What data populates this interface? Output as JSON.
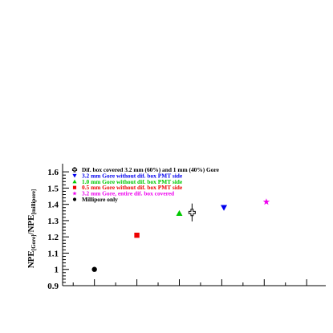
{
  "chart_data": {
    "type": "scatter",
    "title": "",
    "xlabel": "",
    "ylabel": {
      "main_a": "NPE",
      "sub_a": "[Gore]",
      "slash": "/NPE",
      "sub_b": "[millipore]"
    },
    "ylim": [
      0.9,
      1.65
    ],
    "xlim": [
      0,
      6.2
    ],
    "y_ticks": [
      0.9,
      1,
      1.1,
      1.2,
      1.3,
      1.4,
      1.5,
      1.6
    ],
    "y_tick_labels": [
      "0.9",
      "1",
      "1.1",
      "1.2",
      "1.3",
      "1.4",
      "1.5",
      "1.6"
    ],
    "x_major_ticks": [
      0.75,
      1.75,
      2.75,
      3.75,
      4.75,
      5.75
    ],
    "grid": false,
    "legend_position": "top-left",
    "series": [
      {
        "name": "Dif. box covered 3.2 mm (60%) and 1 mm (40%) Gore",
        "marker": "open-cross",
        "color": "#000000",
        "x": [
          3.05
        ],
        "y": [
          1.35
        ],
        "yerr": [
          0.055
        ]
      },
      {
        "name": "3.2 mm Gore without dif. box PMT side",
        "marker": "triangle-down",
        "color": "#0000ee",
        "x": [
          3.8
        ],
        "y": [
          1.38
        ]
      },
      {
        "name": "1.0 mm Gore without dif. box PMT side",
        "marker": "triangle-up",
        "color": "#00c800",
        "x": [
          2.75
        ],
        "y": [
          1.345
        ]
      },
      {
        "name": "0.5 mm Gore without dif. box PMT side",
        "marker": "square",
        "color": "#ee0000",
        "x": [
          1.75
        ],
        "y": [
          1.21
        ]
      },
      {
        "name": "3.2 mm Gore, entire dif. box covered",
        "marker": "star",
        "color": "#ee00ee",
        "x": [
          4.8
        ],
        "y": [
          1.415
        ]
      },
      {
        "name": "Millipore only",
        "marker": "circle",
        "color": "#000000",
        "x": [
          0.75
        ],
        "y": [
          1.0
        ]
      }
    ]
  }
}
